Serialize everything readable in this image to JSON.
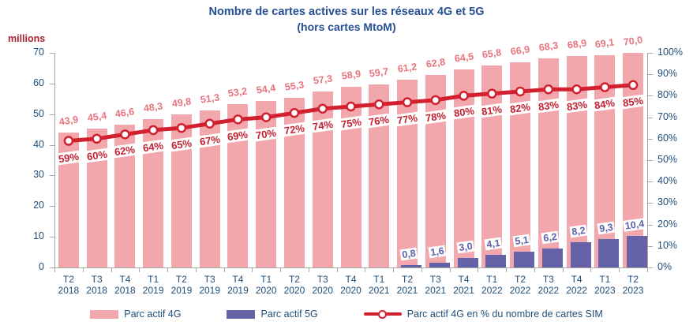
{
  "chart_data": {
    "type": "bar",
    "title": "Nombre de cartes actives sur les réseaux 4G et 5G",
    "subtitle": "(hors cartes MtoM)",
    "unit_label": "millions",
    "legend_position": "bottom",
    "grid": false,
    "categories": [
      {
        "q": "T2",
        "year": "2018"
      },
      {
        "q": "T3",
        "year": "2018"
      },
      {
        "q": "T4",
        "year": "2018"
      },
      {
        "q": "T1",
        "year": "2019"
      },
      {
        "q": "T2",
        "year": "2019"
      },
      {
        "q": "T3",
        "year": "2019"
      },
      {
        "q": "T4",
        "year": "2019"
      },
      {
        "q": "T1",
        "year": "2020"
      },
      {
        "q": "T2",
        "year": "2020"
      },
      {
        "q": "T3",
        "year": "2020"
      },
      {
        "q": "T4",
        "year": "2020"
      },
      {
        "q": "T1",
        "year": "2021"
      },
      {
        "q": "T2",
        "year": "2021"
      },
      {
        "q": "T3",
        "year": "2021"
      },
      {
        "q": "T4",
        "year": "2021"
      },
      {
        "q": "T1",
        "year": "2022"
      },
      {
        "q": "T2",
        "year": "2022"
      },
      {
        "q": "T3",
        "year": "2022"
      },
      {
        "q": "T4",
        "year": "2022"
      },
      {
        "q": "T1",
        "year": "2023"
      },
      {
        "q": "T2",
        "year": "2023"
      }
    ],
    "left_axis": {
      "min": 0,
      "max": 70,
      "tick_values": [
        0,
        10,
        20,
        30,
        40,
        50,
        60,
        70
      ],
      "tick_labels": [
        "0",
        "10",
        "20",
        "30",
        "40",
        "50",
        "60",
        "70"
      ]
    },
    "right_axis": {
      "min": 0,
      "max": 100,
      "tick_values": [
        0,
        10,
        20,
        30,
        40,
        50,
        60,
        70,
        80,
        90,
        100
      ],
      "tick_labels": [
        "0%",
        "10%",
        "20%",
        "30%",
        "40%",
        "50%",
        "60%",
        "70%",
        "80%",
        "90%",
        "100%"
      ]
    },
    "series": [
      {
        "name": "Parc actif 4G",
        "type": "bar",
        "axis": "left",
        "color": "#F1A7AB",
        "values": [
          43.9,
          45.4,
          46.6,
          48.3,
          49.8,
          51.3,
          53.2,
          54.4,
          55.3,
          57.3,
          58.9,
          59.7,
          61.2,
          62.8,
          64.5,
          65.8,
          66.9,
          68.3,
          68.9,
          69.1,
          70.0
        ],
        "labels": [
          "43,9",
          "45,4",
          "46,6",
          "48,3",
          "49,8",
          "51,3",
          "53,2",
          "54,4",
          "55,3",
          "57,3",
          "58,9",
          "59,7",
          "61,2",
          "62,8",
          "64,5",
          "65,8",
          "66,9",
          "68,3",
          "68,9",
          "69,1",
          "70,0"
        ]
      },
      {
        "name": "Parc actif 5G",
        "type": "bar",
        "axis": "left",
        "color": "#6562A8",
        "values": [
          null,
          null,
          null,
          null,
          null,
          null,
          null,
          null,
          null,
          null,
          null,
          null,
          0.8,
          1.6,
          3.0,
          4.1,
          5.1,
          6.2,
          8.2,
          9.3,
          10.4
        ],
        "labels": [
          null,
          null,
          null,
          null,
          null,
          null,
          null,
          null,
          null,
          null,
          null,
          null,
          "0,8",
          "1,6",
          "3,0",
          "4,1",
          "5,1",
          "6,2",
          "8,2",
          "9,3",
          "10,4"
        ]
      },
      {
        "name": "Parc actif 4G en % du nombre de cartes SIM",
        "type": "line",
        "axis": "right",
        "color": "#D2202F",
        "values": [
          59,
          60,
          62,
          64,
          65,
          67,
          69,
          70,
          72,
          74,
          75,
          76,
          77,
          78,
          80,
          81,
          82,
          83,
          83,
          84,
          85
        ],
        "labels": [
          "59%",
          "60%",
          "62%",
          "64%",
          "65%",
          "67%",
          "69%",
          "70%",
          "72%",
          "74%",
          "75%",
          "76%",
          "77%",
          "78%",
          "80%",
          "81%",
          "82%",
          "83%",
          "83%",
          "84%",
          "85%"
        ]
      }
    ],
    "colors": {
      "bar_4g": "#F1A7AB",
      "bar_5g": "#6562A8",
      "line": "#D2202F",
      "marker_fill": "#FFFFFF",
      "label_4g": "#E8737D",
      "label_pct": "#C22130",
      "label_5g": "#5C61A9",
      "axis_text": "#1F4E79",
      "title_text": "#264F94",
      "unit_text": "#A6242F",
      "axis_line": "#A6A6A6"
    }
  }
}
